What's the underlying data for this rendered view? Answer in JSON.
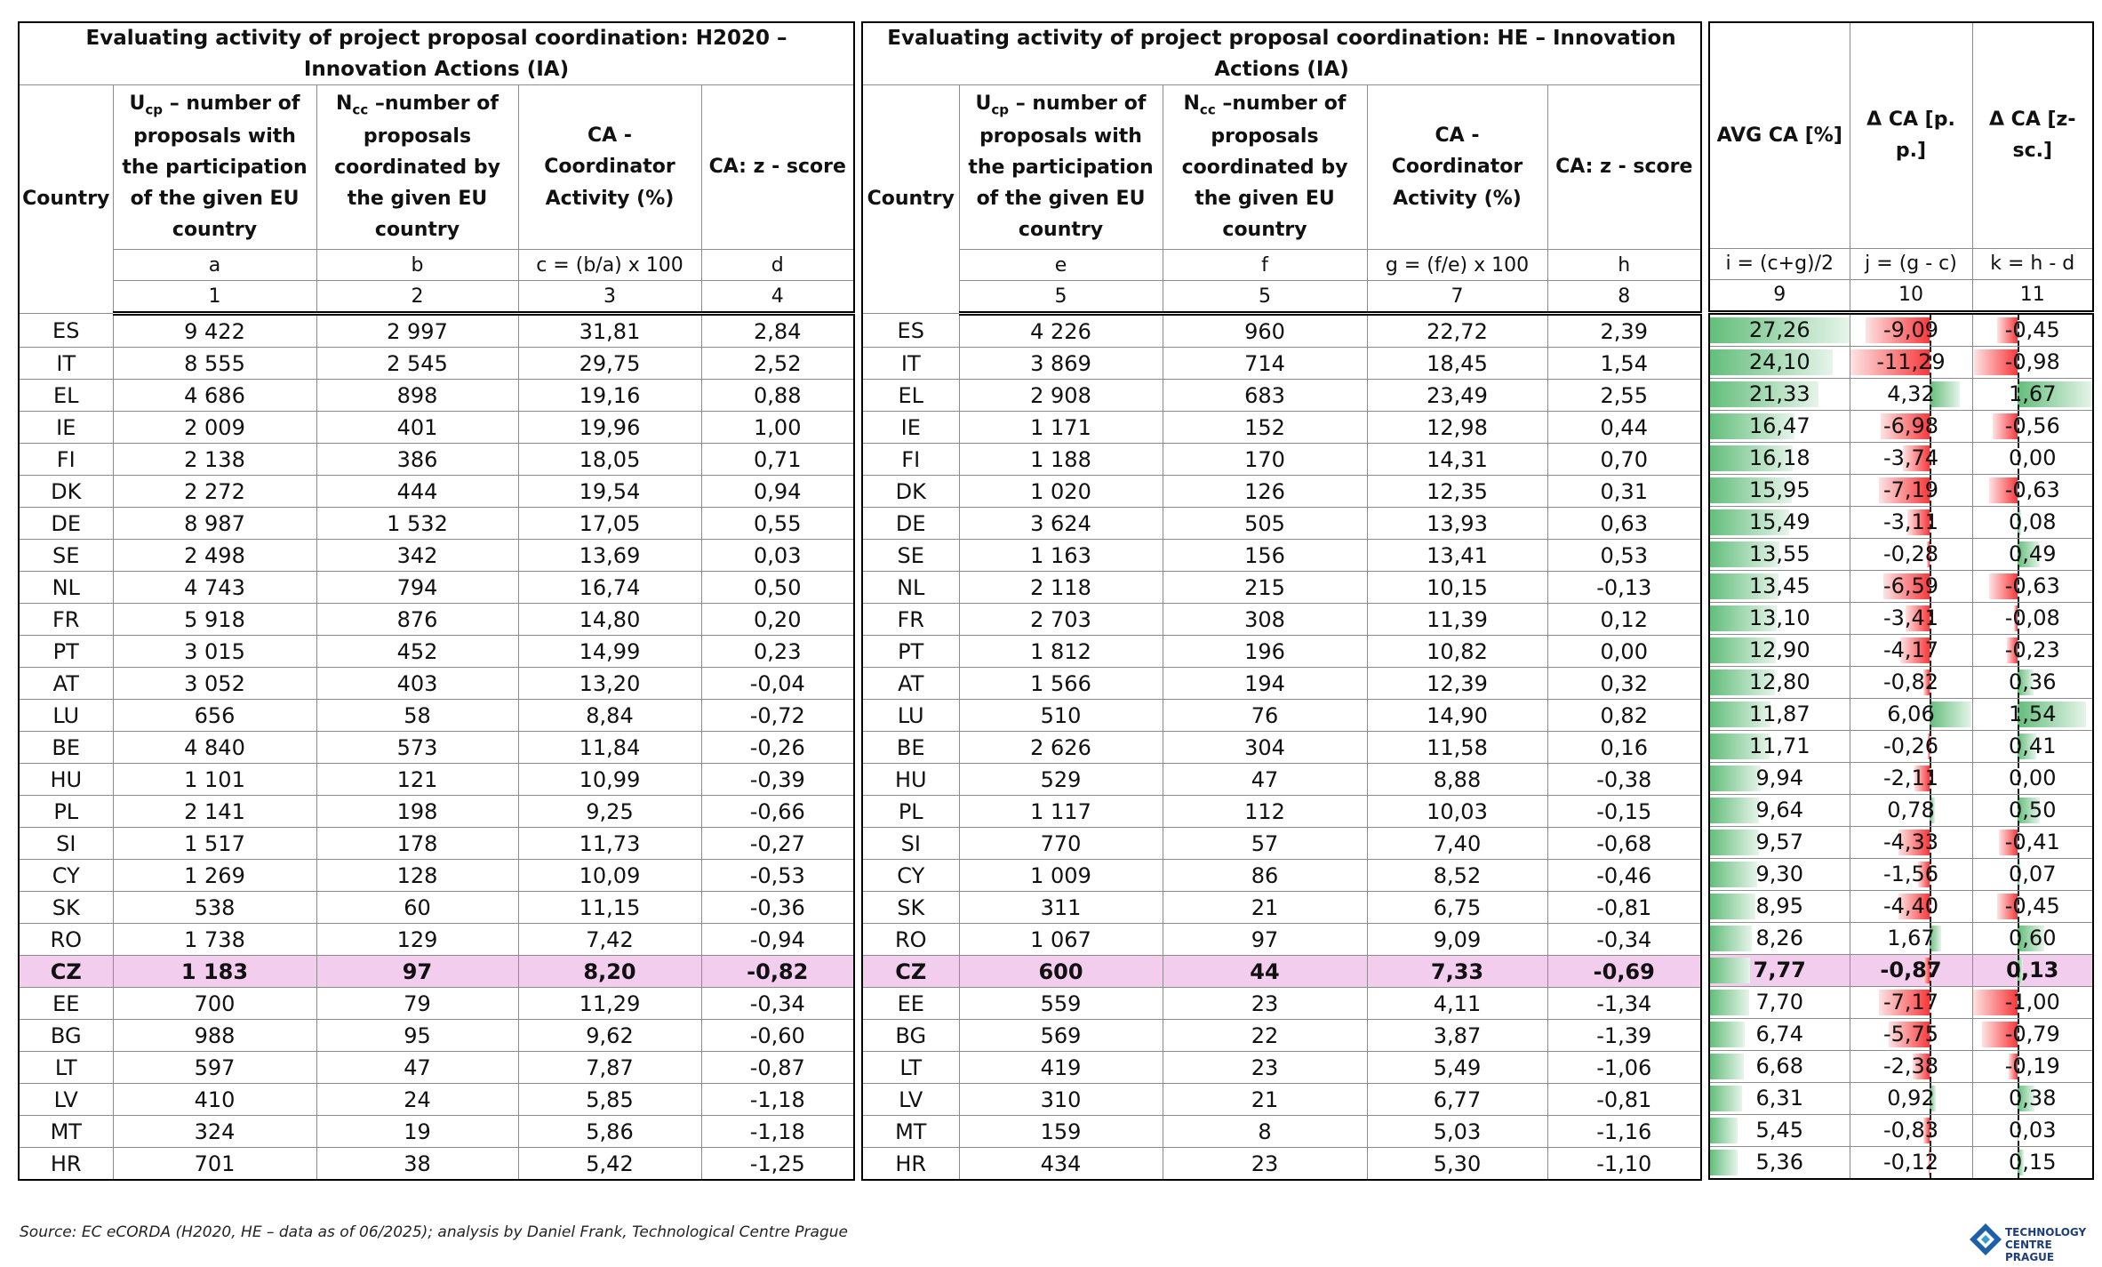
{
  "left": {
    "title": "Evaluating activity of project proposal coordination: H2020 – Innovation Actions (IA)",
    "headers": [
      "Country",
      {
        "symbol": "U",
        "sub": "cp",
        "text": " – number of proposals with the participation of the given EU country"
      },
      {
        "symbol": "N",
        "sub": "cc",
        "text": " –number of proposals coordinated by the given EU country"
      },
      "CA - Coordinator Activity (%)",
      "CA: z - score"
    ],
    "letters": [
      "a",
      "b",
      "c = (b/a) x 100",
      "d"
    ],
    "numbers": [
      "1",
      "2",
      "3",
      "4"
    ],
    "rows": [
      [
        "ES",
        "9 422",
        "2 997",
        "31,81",
        "2,84"
      ],
      [
        "IT",
        "8 555",
        "2 545",
        "29,75",
        "2,52"
      ],
      [
        "EL",
        "4 686",
        "898",
        "19,16",
        "0,88"
      ],
      [
        "IE",
        "2 009",
        "401",
        "19,96",
        "1,00"
      ],
      [
        "FI",
        "2 138",
        "386",
        "18,05",
        "0,71"
      ],
      [
        "DK",
        "2 272",
        "444",
        "19,54",
        "0,94"
      ],
      [
        "DE",
        "8 987",
        "1 532",
        "17,05",
        "0,55"
      ],
      [
        "SE",
        "2 498",
        "342",
        "13,69",
        "0,03"
      ],
      [
        "NL",
        "4 743",
        "794",
        "16,74",
        "0,50"
      ],
      [
        "FR",
        "5 918",
        "876",
        "14,80",
        "0,20"
      ],
      [
        "PT",
        "3 015",
        "452",
        "14,99",
        "0,23"
      ],
      [
        "AT",
        "3 052",
        "403",
        "13,20",
        "-0,04"
      ],
      [
        "LU",
        "656",
        "58",
        "8,84",
        "-0,72"
      ],
      [
        "BE",
        "4 840",
        "573",
        "11,84",
        "-0,26"
      ],
      [
        "HU",
        "1 101",
        "121",
        "10,99",
        "-0,39"
      ],
      [
        "PL",
        "2 141",
        "198",
        "9,25",
        "-0,66"
      ],
      [
        "SI",
        "1 517",
        "178",
        "11,73",
        "-0,27"
      ],
      [
        "CY",
        "1 269",
        "128",
        "10,09",
        "-0,53"
      ],
      [
        "SK",
        "538",
        "60",
        "11,15",
        "-0,36"
      ],
      [
        "RO",
        "1 738",
        "129",
        "7,42",
        "-0,94"
      ],
      [
        "CZ",
        "1 183",
        "97",
        "8,20",
        "-0,82"
      ],
      [
        "EE",
        "700",
        "79",
        "11,29",
        "-0,34"
      ],
      [
        "BG",
        "988",
        "95",
        "9,62",
        "-0,60"
      ],
      [
        "LT",
        "597",
        "47",
        "7,87",
        "-0,87"
      ],
      [
        "LV",
        "410",
        "24",
        "5,85",
        "-1,18"
      ],
      [
        "MT",
        "324",
        "19",
        "5,86",
        "-1,18"
      ],
      [
        "HR",
        "701",
        "38",
        "5,42",
        "-1,25"
      ]
    ]
  },
  "middle": {
    "title": "Evaluating activity of project proposal coordination: HE – Innovation Actions (IA)",
    "headers": [
      "Country",
      {
        "symbol": "U",
        "sub": "cp",
        "text": " – number of proposals with the participation of the given EU country"
      },
      {
        "symbol": "N",
        "sub": "cc",
        "text": " –number of proposals coordinated by the given EU country"
      },
      "CA - Coordinator Activity (%)",
      "CA: z - score"
    ],
    "letters": [
      "e",
      "f",
      "g = (f/e) x 100",
      "h"
    ],
    "numbers": [
      "5",
      "5",
      "7",
      "8"
    ],
    "rows": [
      [
        "ES",
        "4 226",
        "960",
        "22,72",
        "2,39"
      ],
      [
        "IT",
        "3 869",
        "714",
        "18,45",
        "1,54"
      ],
      [
        "EL",
        "2 908",
        "683",
        "23,49",
        "2,55"
      ],
      [
        "IE",
        "1 171",
        "152",
        "12,98",
        "0,44"
      ],
      [
        "FI",
        "1 188",
        "170",
        "14,31",
        "0,70"
      ],
      [
        "DK",
        "1 020",
        "126",
        "12,35",
        "0,31"
      ],
      [
        "DE",
        "3 624",
        "505",
        "13,93",
        "0,63"
      ],
      [
        "SE",
        "1 163",
        "156",
        "13,41",
        "0,53"
      ],
      [
        "NL",
        "2 118",
        "215",
        "10,15",
        "-0,13"
      ],
      [
        "FR",
        "2 703",
        "308",
        "11,39",
        "0,12"
      ],
      [
        "PT",
        "1 812",
        "196",
        "10,82",
        "0,00"
      ],
      [
        "AT",
        "1 566",
        "194",
        "12,39",
        "0,32"
      ],
      [
        "LU",
        "510",
        "76",
        "14,90",
        "0,82"
      ],
      [
        "BE",
        "2 626",
        "304",
        "11,58",
        "0,16"
      ],
      [
        "HU",
        "529",
        "47",
        "8,88",
        "-0,38"
      ],
      [
        "PL",
        "1 117",
        "112",
        "10,03",
        "-0,15"
      ],
      [
        "SI",
        "770",
        "57",
        "7,40",
        "-0,68"
      ],
      [
        "CY",
        "1 009",
        "86",
        "8,52",
        "-0,46"
      ],
      [
        "SK",
        "311",
        "21",
        "6,75",
        "-0,81"
      ],
      [
        "RO",
        "1 067",
        "97",
        "9,09",
        "-0,34"
      ],
      [
        "CZ",
        "600",
        "44",
        "7,33",
        "-0,69"
      ],
      [
        "EE",
        "559",
        "23",
        "4,11",
        "-1,34"
      ],
      [
        "BG",
        "569",
        "22",
        "3,87",
        "-1,39"
      ],
      [
        "LT",
        "419",
        "23",
        "5,49",
        "-1,06"
      ],
      [
        "LV",
        "310",
        "21",
        "6,77",
        "-0,81"
      ],
      [
        "MT",
        "159",
        "8",
        "5,03",
        "-1,16"
      ],
      [
        "HR",
        "434",
        "23",
        "5,30",
        "-1,10"
      ]
    ]
  },
  "right": {
    "headers": [
      "AVG CA [%]",
      "Δ CA [p. p.]",
      "Δ CA [z-sc.]"
    ],
    "letters": [
      "i = (c+g)/2",
      "j = (g - c)",
      "k = h - d"
    ],
    "numbers": [
      "9",
      "10",
      "11"
    ],
    "rows": [
      [
        "27,26",
        "-9,09",
        "-0,45"
      ],
      [
        "24,10",
        "-11,29",
        "-0,98"
      ],
      [
        "21,33",
        "4,32",
        "1,67"
      ],
      [
        "16,47",
        "-6,98",
        "-0,56"
      ],
      [
        "16,18",
        "-3,74",
        "0,00"
      ],
      [
        "15,95",
        "-7,19",
        "-0,63"
      ],
      [
        "15,49",
        "-3,11",
        "0,08"
      ],
      [
        "13,55",
        "-0,28",
        "0,49"
      ],
      [
        "13,45",
        "-6,59",
        "-0,63"
      ],
      [
        "13,10",
        "-3,41",
        "-0,08"
      ],
      [
        "12,90",
        "-4,17",
        "-0,23"
      ],
      [
        "12,80",
        "-0,82",
        "0,36"
      ],
      [
        "11,87",
        "6,06",
        "1,54"
      ],
      [
        "11,71",
        "-0,26",
        "0,41"
      ],
      [
        "9,94",
        "-2,11",
        "0,00"
      ],
      [
        "9,64",
        "0,78",
        "0,50"
      ],
      [
        "9,57",
        "-4,33",
        "-0,41"
      ],
      [
        "9,30",
        "-1,56",
        "0,07"
      ],
      [
        "8,95",
        "-4,40",
        "-0,45"
      ],
      [
        "8,26",
        "1,67",
        "0,60"
      ],
      [
        "7,77",
        "-0,87",
        "0,13"
      ],
      [
        "7,70",
        "-7,17",
        "-1,00"
      ],
      [
        "6,74",
        "-5,75",
        "-0,79"
      ],
      [
        "6,68",
        "-2,38",
        "-0,19"
      ],
      [
        "6,31",
        "0,92",
        "0,38"
      ],
      [
        "5,45",
        "-0,83",
        "0,03"
      ],
      [
        "5,36",
        "-0,12",
        "0,15"
      ]
    ]
  },
  "highlight_row": 20,
  "source": "Source: EC eCORDA (H2020, HE – data as of 06/2025); analysis by Daniel Frank, Technological Centre Prague",
  "logo": [
    "TECHNOLOGY",
    "CENTRE PRAGUE"
  ]
}
